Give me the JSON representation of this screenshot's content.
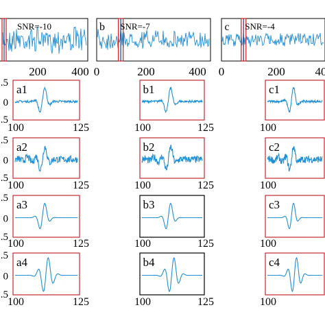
{
  "chart_data": [
    {
      "type": "line",
      "panel": "a",
      "annotation": "SNR=-10",
      "x_ticks": [
        "200",
        "400"
      ],
      "xlim": [
        0,
        420
      ],
      "highlight_window": [
        100,
        125
      ],
      "series": [
        {
          "values_note": "noisy seismic-like trace, amplitude roughly ±1"
        }
      ]
    },
    {
      "type": "line",
      "panel": "b",
      "annotation": "SNR=-7",
      "x_ticks": [
        "0",
        "200",
        "400"
      ],
      "xlim": [
        0,
        420
      ],
      "highlight_window": [
        100,
        125
      ],
      "series": [
        {
          "values_note": "noisy trace, lower noise than a"
        }
      ]
    },
    {
      "type": "line",
      "panel": "c",
      "annotation": "SNR=-4",
      "x_ticks": [
        "0",
        "200",
        "40"
      ],
      "xlim": [
        0,
        420
      ],
      "highlight_window": [
        100,
        125
      ],
      "series": [
        {
          "values_note": "noisy trace, lowest noise"
        }
      ]
    }
  ],
  "subplots": {
    "columns": [
      "a",
      "b",
      "c"
    ],
    "rows": [
      {
        "suffix": "1",
        "y_ticks": [
          ".5",
          "0",
          ".5"
        ],
        "x_ticks": [
          "100",
          "125"
        ]
      },
      {
        "suffix": "2",
        "y_ticks": [
          ".5",
          "0",
          ".5"
        ],
        "x_ticks": [
          "100",
          "125"
        ]
      },
      {
        "suffix": "3",
        "y_ticks": [
          ".5",
          "0",
          ".5"
        ],
        "x_ticks": [
          "100",
          "125"
        ]
      },
      {
        "suffix": "4",
        "y_ticks": [
          ".5",
          "0",
          ".5"
        ],
        "x_ticks": [
          "100",
          "125"
        ]
      }
    ],
    "xlim": [
      100,
      125
    ],
    "ylim": [
      -1.5,
      1.5
    ]
  },
  "colors": {
    "trace": "#1f8fd6",
    "window": "#d62728",
    "frame_highlight": "#c0282d",
    "axis": "#000000"
  }
}
